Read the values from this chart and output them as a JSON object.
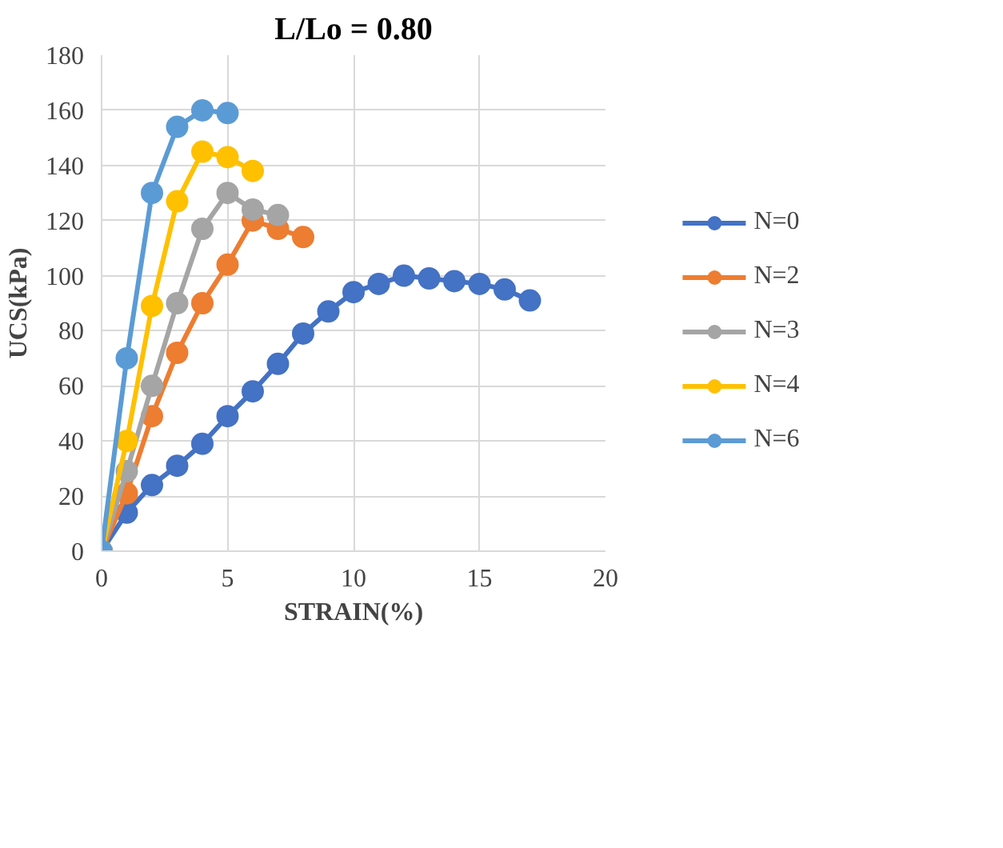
{
  "chart_data": {
    "type": "line",
    "title": "L/Lo = 0.80",
    "xlabel": "STRAIN(%)",
    "ylabel": "UCS(kPa)",
    "xlim": [
      0,
      20
    ],
    "xticks": [
      0,
      5,
      10,
      15,
      20
    ],
    "ylim": [
      0,
      180
    ],
    "yticks": [
      0,
      20,
      40,
      60,
      80,
      100,
      120,
      140,
      160,
      180
    ],
    "grid": true,
    "legend": "right",
    "marker": "circle",
    "line_style": "solid",
    "series": [
      {
        "name": "N=0",
        "color": "#4472c4",
        "x": [
          0,
          1,
          2,
          3,
          4,
          5,
          6,
          7,
          8,
          9,
          10,
          11,
          12,
          13,
          14,
          15,
          16,
          17
        ],
        "values": [
          0,
          14,
          24,
          31,
          39,
          49,
          58,
          68,
          79,
          87,
          94,
          97,
          100,
          99,
          98,
          97,
          95,
          91
        ]
      },
      {
        "name": "N=2",
        "color": "#ed7d31",
        "x": [
          0,
          1,
          2,
          3,
          4,
          5,
          6,
          7,
          8
        ],
        "values": [
          0,
          21,
          49,
          72,
          90,
          104,
          120,
          117,
          114
        ]
      },
      {
        "name": "N=3",
        "color": "#a5a5a5",
        "x": [
          0,
          1,
          2,
          3,
          4,
          5,
          6,
          7
        ],
        "values": [
          0,
          29,
          60,
          90,
          117,
          130,
          124,
          122
        ]
      },
      {
        "name": "N=4",
        "color": "#ffc000",
        "x": [
          0,
          1,
          2,
          3,
          4,
          5,
          6
        ],
        "values": [
          0,
          40,
          89,
          127,
          145,
          143,
          138
        ]
      },
      {
        "name": "N=6",
        "color": "#5b9bd5",
        "x": [
          0,
          1,
          2,
          3,
          4,
          5
        ],
        "values": [
          0,
          70,
          130,
          154,
          160,
          159
        ]
      }
    ]
  }
}
